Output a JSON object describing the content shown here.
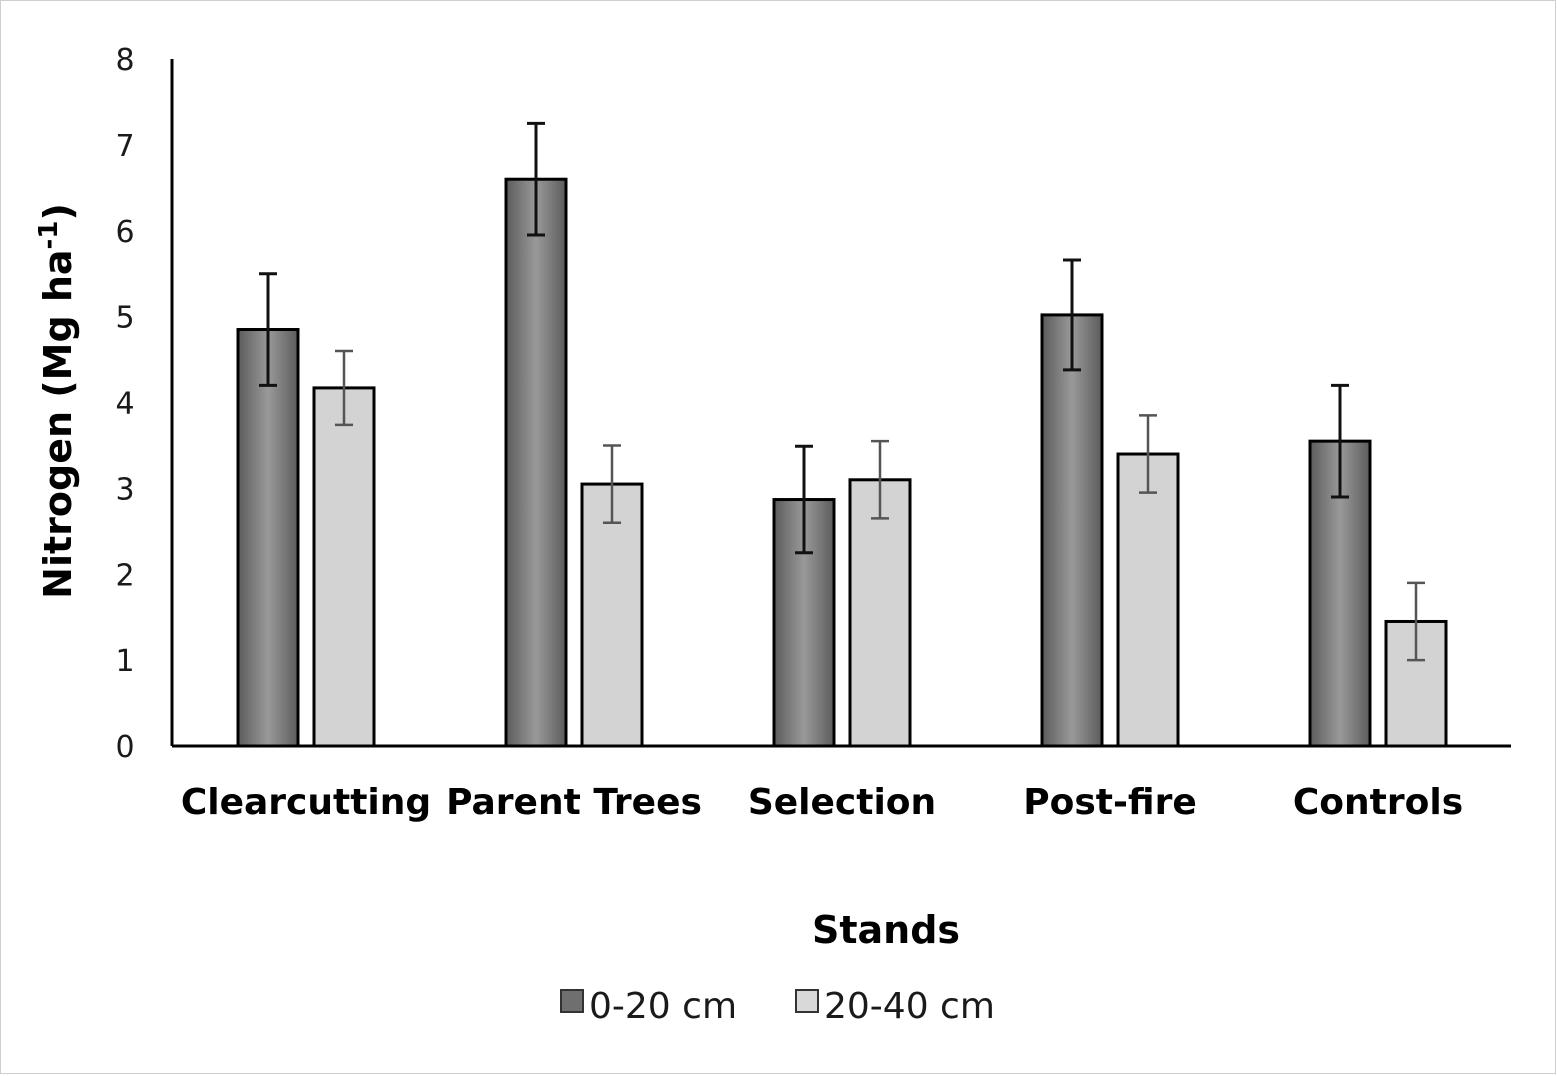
{
  "chart_data": {
    "type": "bar",
    "xlabel": "Stands",
    "ylabel": "Nitrogen (Mg ha",
    "ylabel_superscript": "-1",
    "ylabel_close": ")",
    "ylim": [
      0,
      8
    ],
    "yticks": [
      "0",
      "1",
      "2",
      "3",
      "4",
      "5",
      "6",
      "7",
      "8"
    ],
    "grid": false,
    "legend_position": "bottom",
    "categories": [
      "Clearcutting",
      "Parent Trees",
      "Selection",
      "Post-fire",
      "Controls"
    ],
    "series": [
      {
        "name": "0-20 cm",
        "color": "#6f6f6f",
        "values": [
          4.85,
          6.6,
          2.87,
          5.02,
          3.55
        ],
        "error": [
          0.65,
          0.65,
          0.62,
          0.64,
          0.65
        ]
      },
      {
        "name": "20-40 cm",
        "color": "#d3d3d3",
        "values": [
          4.17,
          3.05,
          3.1,
          3.4,
          1.45
        ],
        "error": [
          0.43,
          0.45,
          0.45,
          0.45,
          0.45
        ]
      }
    ]
  }
}
